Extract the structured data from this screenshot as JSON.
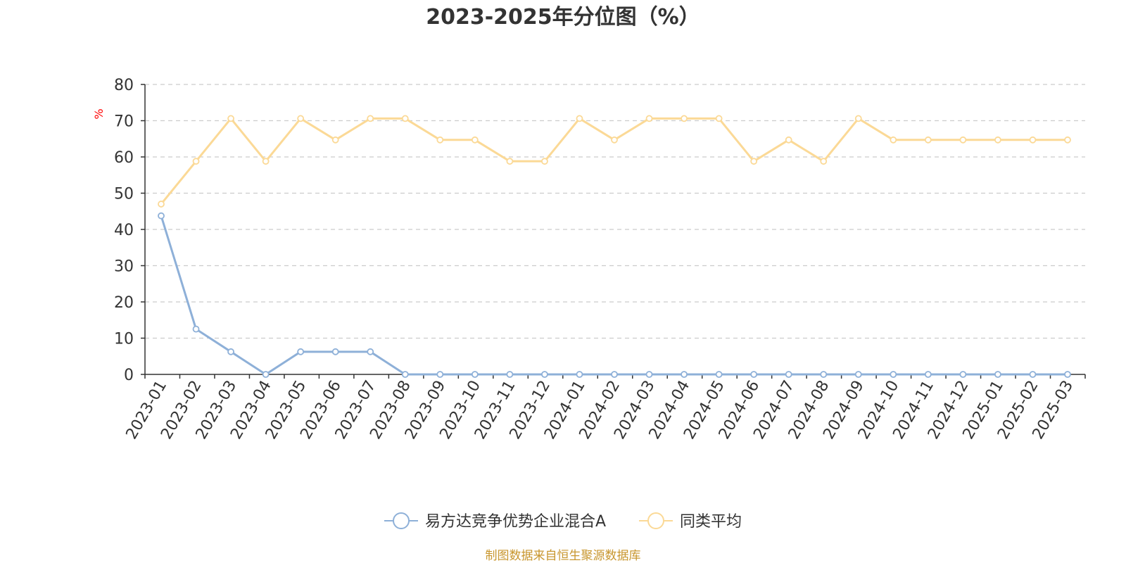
{
  "chart_data": {
    "type": "line",
    "title": "2023-2025年分位图（%）",
    "y_unit": "%",
    "ylim": [
      0,
      80
    ],
    "y_ticks": [
      0,
      10,
      20,
      30,
      40,
      50,
      60,
      70,
      80
    ],
    "grid": true,
    "legend_position": "bottom",
    "categories": [
      "2023-01",
      "2023-02",
      "2023-03",
      "2023-04",
      "2023-05",
      "2023-06",
      "2023-07",
      "2023-08",
      "2023-09",
      "2023-10",
      "2023-11",
      "2023-12",
      "2024-01",
      "2024-02",
      "2024-03",
      "2024-04",
      "2024-05",
      "2024-06",
      "2024-07",
      "2024-08",
      "2024-09",
      "2024-10",
      "2024-11",
      "2024-12",
      "2025-01",
      "2025-02",
      "2025-03"
    ],
    "series": [
      {
        "name": "易方达竞争优势企业混合A",
        "color": "#8eb0d8",
        "values": [
          43.75,
          12.5,
          6.25,
          0,
          6.25,
          6.25,
          6.25,
          0,
          0,
          0,
          0,
          0,
          0,
          0,
          0,
          0,
          0,
          0,
          0,
          0,
          0,
          0,
          0,
          0,
          0,
          0,
          0
        ]
      },
      {
        "name": "同类平均",
        "color": "#fbd996",
        "values": [
          47,
          58.8,
          70.6,
          58.8,
          70.6,
          64.7,
          70.6,
          70.6,
          64.7,
          64.7,
          58.8,
          58.8,
          70.6,
          64.7,
          70.6,
          70.6,
          70.6,
          58.8,
          64.7,
          58.8,
          70.6,
          64.7,
          64.7,
          64.7,
          64.7,
          64.7,
          64.7
        ]
      }
    ],
    "source": "制图数据来自恒生聚源数据库",
    "colors": {
      "axis": "#333333",
      "grid": "#cccccc",
      "y_unit": "#ff0000",
      "source": "#c8962e"
    }
  }
}
